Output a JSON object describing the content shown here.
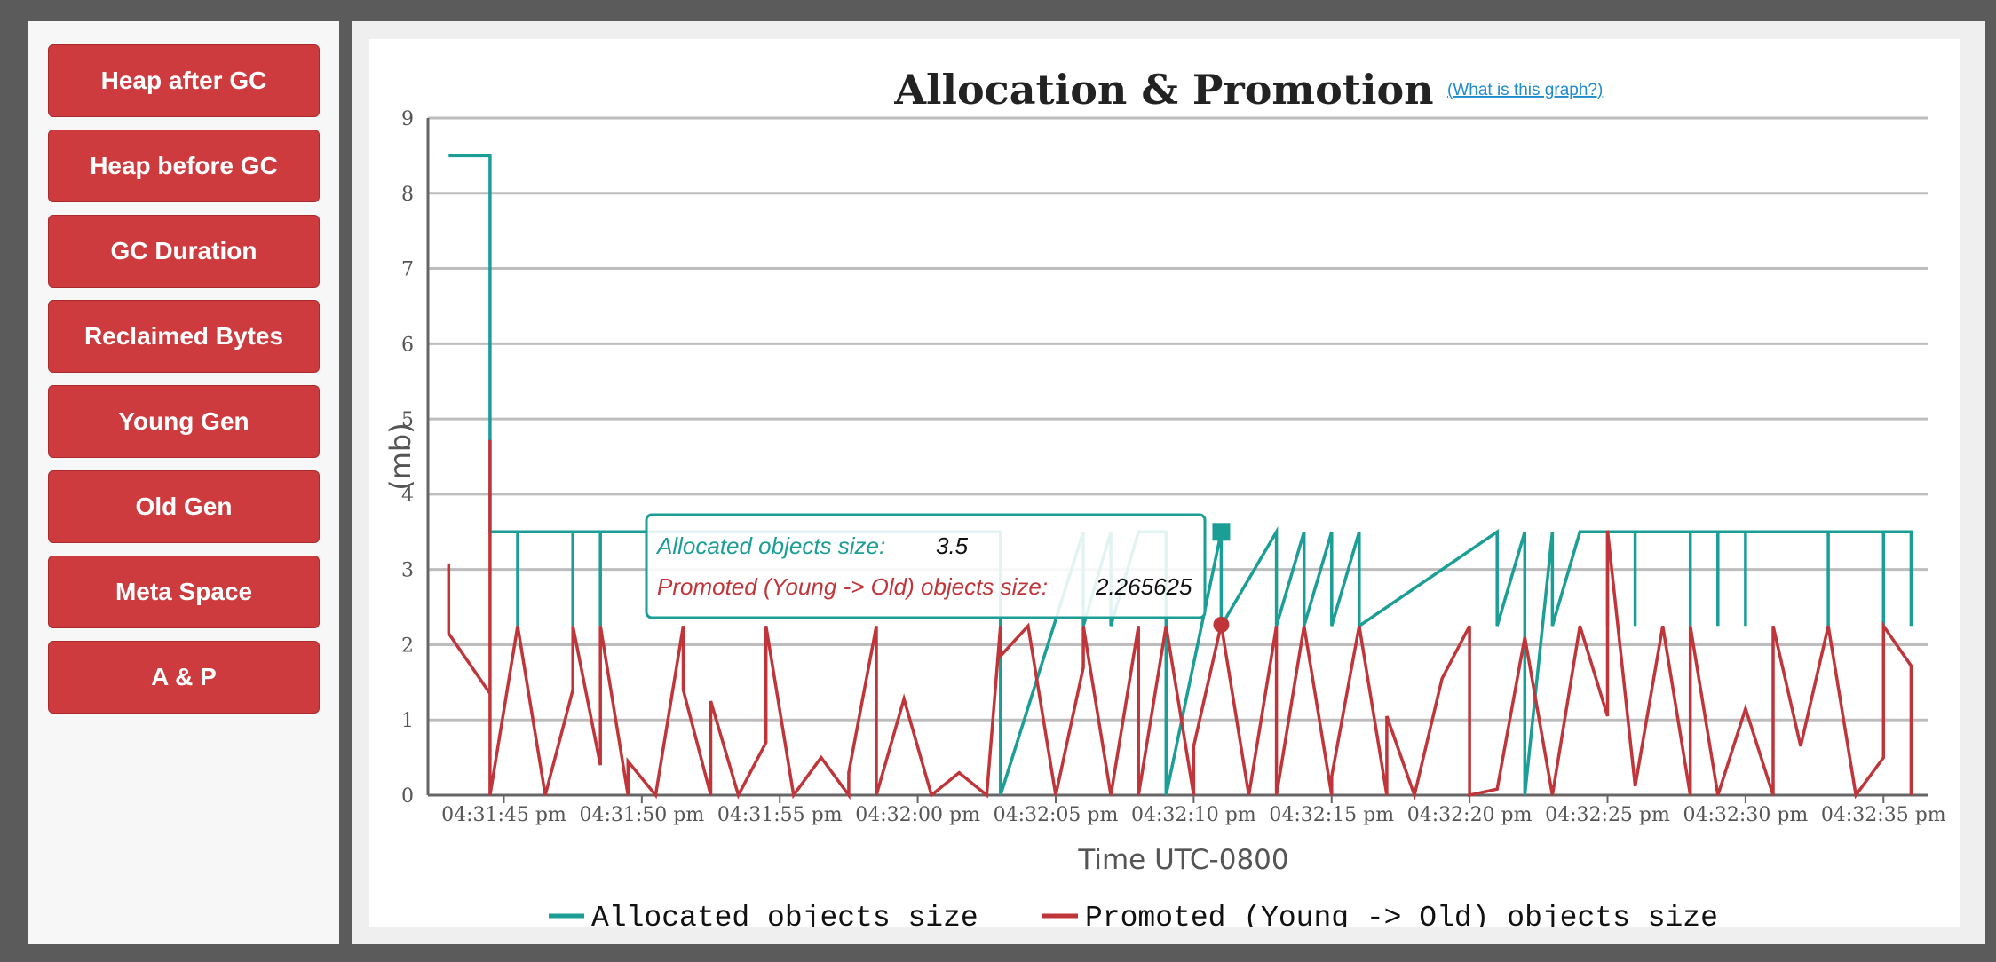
{
  "sidebar": {
    "buttons": [
      {
        "label": "Heap after GC"
      },
      {
        "label": "Heap before GC"
      },
      {
        "label": "GC Duration"
      },
      {
        "label": "Reclaimed Bytes"
      },
      {
        "label": "Young Gen"
      },
      {
        "label": "Old Gen"
      },
      {
        "label": "Meta Space"
      },
      {
        "label": "A & P"
      }
    ]
  },
  "chart": {
    "help_link": "(What is this graph?)"
  },
  "tooltip": {
    "allocated_label": "Allocated objects size:",
    "allocated_value": "3.5",
    "promoted_label": "Promoted (Young -> Old) objects size:",
    "promoted_value": "2.265625"
  },
  "colors": {
    "allocated": "#1a9e96",
    "promoted": "#c0353a",
    "button": "#cd3b3e"
  },
  "chart_data": {
    "type": "line",
    "title": "Allocation & Promotion",
    "xlabel": "Time UTC-0800",
    "ylabel": "(mb)",
    "ylim": [
      0,
      9
    ],
    "yticks": [
      "0",
      "1",
      "2",
      "3",
      "4",
      "5",
      "6",
      "7",
      "8",
      "9"
    ],
    "xlim": [
      "04:31:42.25 pm",
      "04:32:36.6 pm"
    ],
    "xticks": [
      "04:31:45 pm",
      "04:31:50 pm",
      "04:31:55 pm",
      "04:32:00 pm",
      "04:32:05 pm",
      "04:32:10 pm",
      "04:32:15 pm",
      "04:32:20 pm",
      "04:32:25 pm",
      "04:32:30 pm",
      "04:32:35 pm"
    ],
    "grid": true,
    "legend": "bottom",
    "series": [
      {
        "name": "Allocated objects size",
        "color": "#1a9e96",
        "x": [
          "04:31:43 pm",
          "04:31:44.5 pm",
          "04:31:44.5 pm",
          "04:31:45.5 pm",
          "04:31:45.5 pm",
          "04:31:45.5 pm",
          "04:31:47.5 pm",
          "04:31:47.5 pm",
          "04:31:47.5 pm",
          "04:31:48.5 pm",
          "04:31:48.5 pm",
          "04:31:48.5 pm",
          "04:31:49.5 pm",
          "04:32:02 pm",
          "04:32:03 pm",
          "04:32:03 pm",
          "04:32:06 pm",
          "04:32:06 pm",
          "04:32:06 pm",
          "04:32:07 pm",
          "04:32:07 pm",
          "04:32:07 pm",
          "04:32:08 pm",
          "04:32:09 pm",
          "04:32:09 pm",
          "04:32:11 pm",
          "04:32:11 pm",
          "04:32:11 pm",
          "04:32:13 pm",
          "04:32:13 pm",
          "04:32:13 pm",
          "04:32:14 pm",
          "04:32:14 pm",
          "04:32:14 pm",
          "04:32:15 pm",
          "04:32:15 pm",
          "04:32:15 pm",
          "04:32:16 pm",
          "04:32:16 pm",
          "04:32:16 pm",
          "04:32:21 pm",
          "04:32:21 pm",
          "04:32:21 pm",
          "04:32:22 pm",
          "04:32:22 pm",
          "04:32:22 pm",
          "04:32:23 pm",
          "04:32:23 pm",
          "04:32:24 pm",
          "04:32:25 pm",
          "04:32:25 pm",
          "04:32:25 pm",
          "04:32:26 pm",
          "04:32:26 pm",
          "04:32:26 pm",
          "04:32:28 pm",
          "04:32:28 pm",
          "04:32:28 pm",
          "04:32:29 pm",
          "04:32:29 pm",
          "04:32:29 pm",
          "04:32:30 pm",
          "04:32:30 pm",
          "04:32:30 pm",
          "04:32:33 pm",
          "04:32:33 pm",
          "04:32:33 pm",
          "04:32:35 pm",
          "04:32:35 pm",
          "04:32:35 pm",
          "04:32:36 pm",
          "04:32:36 pm",
          "04:32:36 pm"
        ],
        "values": [
          8.5,
          8.5,
          3.5,
          3.5,
          2.25,
          3.5,
          3.5,
          2.25,
          3.5,
          3.5,
          2.25,
          3.5,
          3.5,
          3.5,
          3.5,
          0,
          3.5,
          3.5,
          2.25,
          3.5,
          3.5,
          2.25,
          3.5,
          3.5,
          0,
          3.5,
          3.5,
          2.25,
          3.5,
          3.5,
          2.25,
          3.5,
          3.5,
          2.25,
          3.5,
          3.5,
          2.25,
          3.5,
          3.5,
          2.25,
          3.5,
          3.5,
          2.25,
          3.5,
          3.5,
          0,
          3.5,
          2.25,
          3.5,
          3.5,
          2.25,
          3.5,
          3.5,
          2.25,
          3.5,
          3.5,
          2.25,
          3.5,
          3.5,
          2.25,
          3.5,
          3.5,
          2.25,
          3.5,
          3.5,
          2.25,
          3.5,
          3.5,
          2.25,
          3.5,
          3.5,
          2.25,
          3.5
        ]
      },
      {
        "name": "Promoted (Young -> Old) objects size",
        "color": "#c0353a",
        "x": [
          "04:31:43 pm",
          "04:31:43 pm",
          "04:31:44.5 pm",
          "04:31:44.5 pm",
          "04:31:44.5 pm",
          "04:31:45.5 pm",
          "04:31:46.5 pm",
          "04:31:47.5 pm",
          "04:31:47.5 pm",
          "04:31:48.5 pm",
          "04:31:48.5 pm",
          "04:31:49.5 pm",
          "04:31:49.5 pm",
          "04:31:50.5 pm",
          "04:31:51.5 pm",
          "04:31:51.5 pm",
          "04:31:52.5 pm",
          "04:31:52.5 pm",
          "04:31:53.5 pm",
          "04:31:54.5 pm",
          "04:31:54.5 pm",
          "04:31:55.5 pm",
          "04:31:56.5 pm",
          "04:31:57.5 pm",
          "04:31:57.5 pm",
          "04:31:58.5 pm",
          "04:31:58.5 pm",
          "04:31:59.5 pm",
          "04:32:00.5 pm",
          "04:32:01.5 pm",
          "04:32:02.5 pm",
          "04:32:03 pm",
          "04:32:03 pm",
          "04:32:04 pm",
          "04:32:05 pm",
          "04:32:06 pm",
          "04:32:06 pm",
          "04:32:07 pm",
          "04:32:08 pm",
          "04:32:08 pm",
          "04:32:09 pm",
          "04:32:10 pm",
          "04:32:10 pm",
          "04:32:11 pm",
          "04:32:12 pm",
          "04:32:13 pm",
          "04:32:13 pm",
          "04:32:14 pm",
          "04:32:15 pm",
          "04:32:15 pm",
          "04:32:16 pm",
          "04:32:17 pm",
          "04:32:17 pm",
          "04:32:18 pm",
          "04:32:19 pm",
          "04:32:20 pm",
          "04:32:20 pm",
          "04:32:21 pm",
          "04:32:22 pm",
          "04:32:23 pm",
          "04:32:24 pm",
          "04:32:25 pm",
          "04:32:25 pm",
          "04:32:26 pm",
          "04:32:27 pm",
          "04:32:28 pm",
          "04:32:28 pm",
          "04:32:29 pm",
          "04:32:30 pm",
          "04:32:31 pm",
          "04:32:31 pm",
          "04:32:32 pm",
          "04:32:33 pm",
          "04:32:34 pm",
          "04:32:35 pm",
          "04:32:35 pm",
          "04:32:36 pm",
          "04:32:36 pm"
        ],
        "values": [
          3.08,
          2.15,
          1.35,
          4.72,
          0,
          2.25,
          0,
          1.4,
          2.25,
          0.4,
          2.25,
          0,
          0.45,
          0,
          2.25,
          1.4,
          0,
          1.25,
          0,
          0.7,
          2.25,
          0,
          0.5,
          0,
          0.3,
          2.25,
          0,
          1.28,
          0,
          0.3,
          0,
          2.25,
          1.85,
          2.25,
          0,
          1.7,
          2.25,
          0,
          2.25,
          0,
          2.25,
          0,
          0.65,
          2.27,
          0,
          2.25,
          0,
          2.25,
          0,
          0.25,
          2.25,
          0,
          1.05,
          0,
          1.55,
          2.25,
          0,
          0.08,
          2.1,
          0,
          2.25,
          1.05,
          3.52,
          0.12,
          2.25,
          0,
          2.25,
          0,
          1.15,
          0,
          2.25,
          0.65,
          2.25,
          0,
          0.5,
          2.25,
          1.72,
          0
        ]
      }
    ],
    "tooltip_x": "04:32:11 pm"
  }
}
